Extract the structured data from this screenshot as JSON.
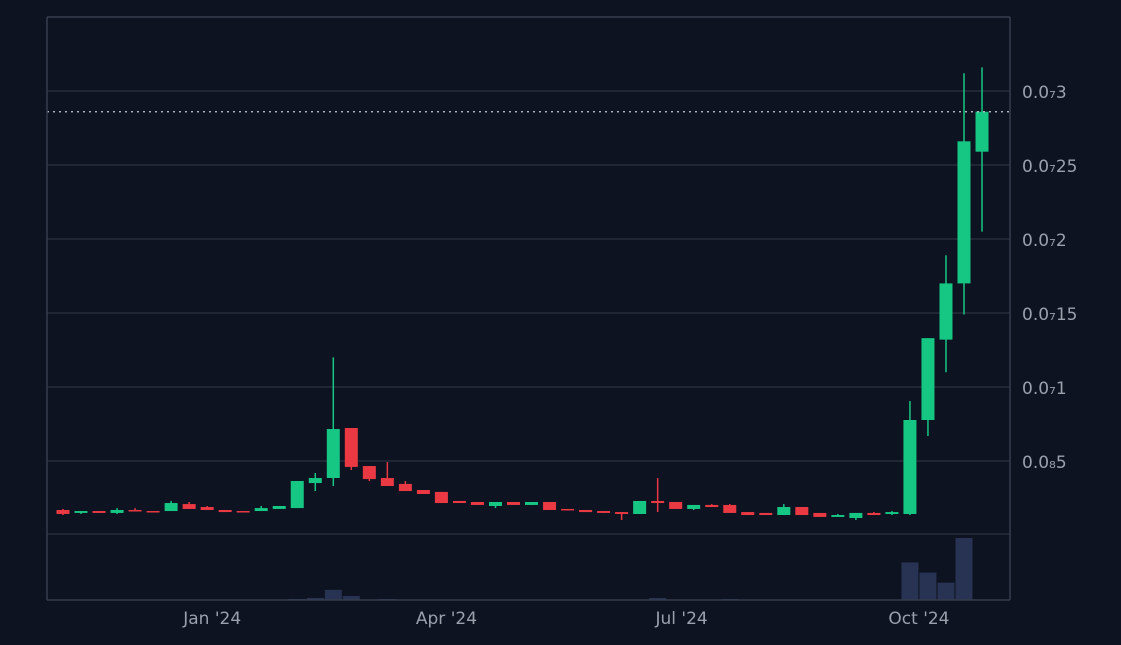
{
  "chart_data": {
    "type": "candlestick",
    "up_color": "#16c784",
    "down_color": "#ea3943",
    "volume_color": "#283252",
    "grid": true,
    "ylim": [
      0,
      3.5e-08
    ],
    "yticks": [
      {
        "value": 5e-09,
        "label": "0.0₈5"
      },
      {
        "value": 1e-08,
        "label": "0.0₇1"
      },
      {
        "value": 1.5e-08,
        "label": "0.0₇15"
      },
      {
        "value": 2e-08,
        "label": "0.0₇2"
      },
      {
        "value": 2.5e-08,
        "label": "0.0₇25"
      },
      {
        "value": 3e-08,
        "label": "0.0₇3"
      }
    ],
    "xticks": [
      {
        "value": 8.28,
        "label": "Jan '24"
      },
      {
        "value": 21.28,
        "label": "Apr '24"
      },
      {
        "value": 34.33,
        "label": "Jul '24"
      },
      {
        "value": 47.5,
        "label": "Oct '24"
      }
    ],
    "open": [
      1.69e-09,
      1.49e-09,
      1.62e-09,
      1.49e-09,
      1.69e-09,
      1.62e-09,
      1.62e-09,
      2.09e-09,
      1.89e-09,
      1.69e-09,
      1.62e-09,
      1.62e-09,
      1.76e-09,
      1.82e-09,
      3.51e-09,
      3.85e-09,
      7.23e-09,
      4.66e-09,
      3.85e-09,
      3.45e-09,
      3.04e-09,
      2.91e-09,
      2.3e-09,
      2.23e-09,
      1.96e-09,
      2.23e-09,
      2.03e-09,
      2.23e-09,
      1.76e-09,
      1.69e-09,
      1.62e-09,
      1.55e-09,
      1.42e-09,
      2.3e-09,
      2.23e-09,
      1.76e-09,
      2.03e-09,
      2.03e-09,
      1.55e-09,
      1.49e-09,
      1.35e-09,
      1.89e-09,
      1.49e-09,
      1.22e-09,
      1.15e-09,
      1.49e-09,
      1.42e-09,
      1.42e-09,
      7.77e-09,
      1.32e-08,
      1.7e-08,
      2.59e-08
    ],
    "high": [
      1.76e-09,
      1.62e-09,
      1.62e-09,
      1.82e-09,
      1.82e-09,
      1.62e-09,
      2.3e-09,
      2.23e-09,
      1.96e-09,
      1.69e-09,
      1.62e-09,
      1.96e-09,
      1.96e-09,
      3.65e-09,
      4.19e-09,
      1.2e-08,
      7.23e-09,
      4.66e-09,
      4.93e-09,
      3.65e-09,
      3.04e-09,
      2.91e-09,
      2.3e-09,
      2.23e-09,
      2.23e-09,
      2.23e-09,
      2.23e-09,
      2.23e-09,
      1.76e-09,
      1.69e-09,
      1.62e-09,
      1.55e-09,
      2.3e-09,
      3.85e-09,
      2.23e-09,
      2.03e-09,
      2.09e-09,
      2.09e-09,
      1.55e-09,
      1.49e-09,
      2.09e-09,
      1.89e-09,
      1.49e-09,
      1.42e-09,
      1.49e-09,
      1.55e-09,
      1.62e-09,
      9.05e-09,
      1.33e-08,
      1.89e-08,
      3.12e-08,
      3.16e-08
    ],
    "low": [
      1.35e-09,
      1.42e-09,
      1.49e-09,
      1.42e-09,
      1.62e-09,
      1.55e-09,
      1.62e-09,
      1.76e-09,
      1.69e-09,
      1.55e-09,
      1.55e-09,
      1.62e-09,
      1.76e-09,
      1.82e-09,
      2.97e-09,
      3.31e-09,
      4.39e-09,
      3.65e-09,
      3.31e-09,
      2.97e-09,
      2.77e-09,
      2.16e-09,
      2.16e-09,
      2.03e-09,
      1.82e-09,
      2.03e-09,
      2.03e-09,
      1.69e-09,
      1.69e-09,
      1.55e-09,
      1.49e-09,
      1.01e-09,
      1.42e-09,
      1.55e-09,
      1.76e-09,
      1.69e-09,
      1.89e-09,
      1.49e-09,
      1.35e-09,
      1.35e-09,
      1.35e-09,
      1.35e-09,
      1.22e-09,
      1.22e-09,
      1.01e-09,
      1.35e-09,
      1.35e-09,
      1.35e-09,
      6.69e-09,
      1.1e-08,
      1.49e-08,
      2.05e-08
    ],
    "close": [
      1.42e-09,
      1.62e-09,
      1.49e-09,
      1.69e-09,
      1.62e-09,
      1.55e-09,
      2.16e-09,
      1.76e-09,
      1.69e-09,
      1.55e-09,
      1.55e-09,
      1.82e-09,
      1.96e-09,
      3.65e-09,
      3.85e-09,
      7.16e-09,
      4.6e-09,
      3.78e-09,
      3.31e-09,
      2.97e-09,
      2.77e-09,
      2.16e-09,
      2.16e-09,
      2.03e-09,
      2.23e-09,
      2.03e-09,
      2.23e-09,
      1.69e-09,
      1.69e-09,
      1.55e-09,
      1.49e-09,
      1.42e-09,
      2.3e-09,
      2.16e-09,
      1.76e-09,
      2.03e-09,
      1.89e-09,
      1.49e-09,
      1.35e-09,
      1.35e-09,
      1.89e-09,
      1.35e-09,
      1.22e-09,
      1.35e-09,
      1.49e-09,
      1.35e-09,
      1.55e-09,
      7.77e-09,
      1.33e-08,
      1.7e-08,
      2.66e-08,
      2.86e-08
    ],
    "volume": [
      0,
      0,
      0,
      0,
      0,
      0,
      0,
      0,
      0,
      0,
      0,
      0,
      0,
      1,
      2,
      10,
      4,
      0,
      1,
      0,
      0,
      0,
      0,
      0,
      0,
      0,
      0,
      0,
      0,
      0,
      0,
      0,
      0,
      2,
      0,
      0,
      0,
      1,
      0,
      0,
      0,
      0,
      0,
      0,
      0,
      0,
      0,
      37,
      27,
      17,
      61,
      0
    ]
  }
}
